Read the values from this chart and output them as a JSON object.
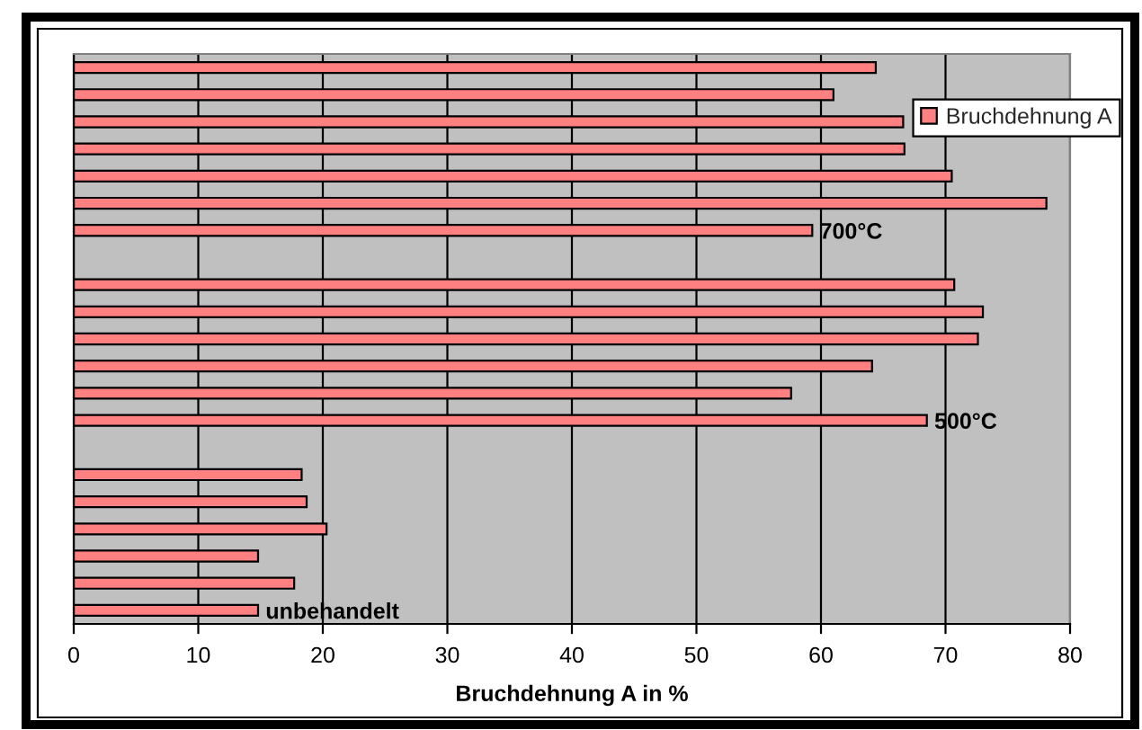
{
  "chart_data": {
    "type": "bar",
    "orientation": "horizontal",
    "categories": [
      null,
      null,
      null,
      null,
      null,
      null,
      null,
      null,
      null,
      null,
      null,
      null,
      null,
      null,
      null,
      null,
      null,
      null,
      null,
      null,
      null
    ],
    "series": [
      {
        "name": "Bruchdehnung A",
        "color": "#ff8080",
        "values": [
          64.4,
          61.0,
          66.6,
          66.7,
          70.5,
          78.1,
          59.3,
          null,
          70.7,
          73.0,
          72.6,
          64.1,
          57.6,
          68.5,
          null,
          18.3,
          18.7,
          20.3,
          14.8,
          17.7,
          14.8
        ]
      }
    ],
    "xlabel": "Bruchdehnung A in %",
    "xlim": [
      0,
      80
    ],
    "xticks": [
      0,
      10,
      20,
      30,
      40,
      50,
      60,
      70,
      80
    ],
    "grid": "x",
    "legend": "top right",
    "annotations": [
      "700°C",
      "500°C",
      "unbehandelt"
    ]
  }
}
